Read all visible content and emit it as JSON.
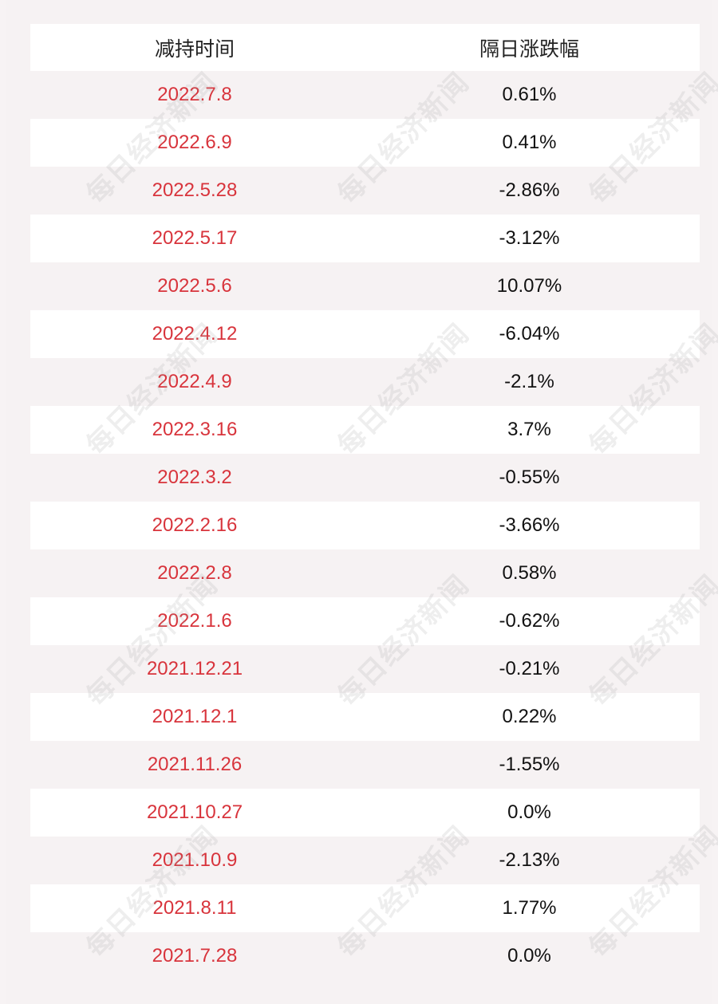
{
  "table": {
    "headers": [
      "减持时间",
      "隔日涨跌幅"
    ],
    "rows": [
      {
        "date": "2022.7.8",
        "change": "0.61%"
      },
      {
        "date": "2022.6.9",
        "change": "0.41%"
      },
      {
        "date": "2022.5.28",
        "change": "-2.86%"
      },
      {
        "date": "2022.5.17",
        "change": "-3.12%"
      },
      {
        "date": "2022.5.6",
        "change": "10.07%"
      },
      {
        "date": "2022.4.12",
        "change": "-6.04%"
      },
      {
        "date": "2022.4.9",
        "change": "-2.1%"
      },
      {
        "date": "2022.3.16",
        "change": "3.7%"
      },
      {
        "date": "2022.3.2",
        "change": "-0.55%"
      },
      {
        "date": "2022.2.16",
        "change": "-3.66%"
      },
      {
        "date": "2022.2.8",
        "change": "0.58%"
      },
      {
        "date": "2022.1.6",
        "change": "-0.62%"
      },
      {
        "date": "2021.12.21",
        "change": "-0.21%"
      },
      {
        "date": "2021.12.1",
        "change": "0.22%"
      },
      {
        "date": "2021.11.26",
        "change": "-1.55%"
      },
      {
        "date": "2021.10.27",
        "change": "0.0%"
      },
      {
        "date": "2021.10.9",
        "change": "-2.13%"
      },
      {
        "date": "2021.8.11",
        "change": "1.77%"
      },
      {
        "date": "2021.7.28",
        "change": "0.0%"
      }
    ]
  },
  "watermark": "每日经济新闻"
}
